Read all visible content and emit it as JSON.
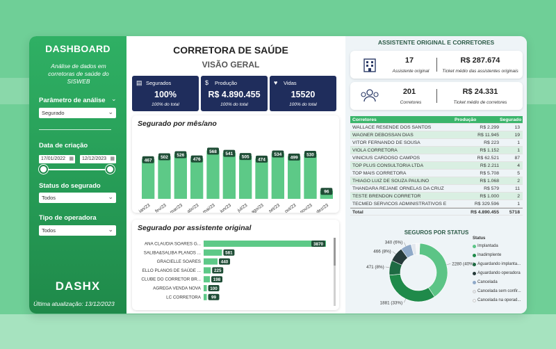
{
  "sidebar": {
    "title": "DASHBOARD",
    "subtitle": "Análise de dados em corretoras de saúde do SISWEB",
    "param_label": "Parâmetro de análise",
    "param_value": "Segurado",
    "date_label": "Data de criação",
    "date_start": "17/01/2022",
    "date_end": "12/12/2023",
    "status_label": "Status do segurado",
    "status_value": "Todos",
    "operator_label": "Tipo de operadora",
    "operator_value": "Todos",
    "logo": "DASHX",
    "updated": "Última atualização: 13/12/2023"
  },
  "header": {
    "title": "CORRETORA DE SAÚDE",
    "subtitle": "VISÃO GERAL"
  },
  "kpis": [
    {
      "label": "Segurados",
      "value": "100%",
      "total": "100% do total",
      "icon": "document-icon"
    },
    {
      "label": "Produção",
      "value": "R$ 4.890.455",
      "total": "100% do total",
      "icon": "money-icon"
    },
    {
      "label": "Vidas",
      "value": "15520",
      "total": "100% do total",
      "icon": "people-hands-icon"
    }
  ],
  "monthly": {
    "title": "Segurado por mês/ano",
    "categories": [
      "jan/23",
      "fev/23",
      "mar/23",
      "abr/23",
      "mai/23",
      "jun/23",
      "jul/23",
      "ago/23",
      "set/23",
      "out/23",
      "nov/23",
      "dez/23"
    ],
    "values": [
      467,
      502,
      526,
      476,
      568,
      541,
      505,
      474,
      534,
      499,
      530,
      96
    ],
    "colors": {
      "bar": "#5dc987",
      "label_bg": "#1f4d36"
    }
  },
  "assistants": {
    "title": "Segurado por assistente original",
    "rows": [
      {
        "name": "ANA CLAUDIA SOARES G...",
        "value": 3870
      },
      {
        "name": "SALIBA&SALIBA PLANOS ...",
        "value": 581
      },
      {
        "name": "GRACIELLE SOARES",
        "value": 440
      },
      {
        "name": "ELLO PLANOS DE SAÚDE ...",
        "value": 225
      },
      {
        "name": "CLUBE DO CORRETOR BR...",
        "value": 198
      },
      {
        "name": "AGREGA VENDA NOVA",
        "value": 100
      },
      {
        "name": "LC CORRETORA",
        "value": 99
      }
    ]
  },
  "right": {
    "heading": "ASSISTENTE ORIGINAL E CORRETORES",
    "card1": {
      "count": "17",
      "count_label": "Assistente original",
      "ticket": "R$ 287.674",
      "ticket_label": "Ticket médio das assistentes originais"
    },
    "card2": {
      "count": "201",
      "count_label": "Corretores",
      "ticket": "R$ 24.331",
      "ticket_label": "Ticket médio de corretores"
    }
  },
  "table": {
    "headers": [
      "Corretores",
      "Produção",
      "Segurado"
    ],
    "rows": [
      [
        "WALLACE RESENDE DOS SANTOS",
        "R$ 2.299",
        "13"
      ],
      [
        "WAGNER DEBOSSAN DIAS",
        "R$ 11.945",
        "19"
      ],
      [
        "VITOR FERNANDO DE SOUSA",
        "R$ 223",
        "1"
      ],
      [
        "VIOLA CORRETORA",
        "R$ 1.152",
        "1"
      ],
      [
        "VINICIUS CARDOSO CAMPOS",
        "R$ 62.521",
        "87"
      ],
      [
        "TOP PLUS CONSULTORIA LTDA",
        "R$ 2.211",
        "4"
      ],
      [
        "TOP MAIS CORRETORA",
        "R$ 5.708",
        "5"
      ],
      [
        "THIAGO LUIZ DE SOUZA PAULINO",
        "R$ 1.068",
        "2"
      ],
      [
        "THANDARA REJANE ORNELAS DA CRUZ",
        "R$ 579",
        "11"
      ],
      [
        "TESTE BRENDON CORRETOR",
        "R$ 1.000",
        "2"
      ],
      [
        "TECMED SERVICOS ADMINISTRATIVOS E",
        "R$ 329.596",
        "1"
      ]
    ],
    "total": [
      "Total",
      "R$ 4.890.455",
      "5718"
    ]
  },
  "status_chart": {
    "title": "SEGUROS POR STATUS",
    "legend_title": "Status",
    "slices": [
      {
        "label": "Implantada",
        "value": 2280,
        "display": "2280 (40%)",
        "color": "#5cc486"
      },
      {
        "label": "Inadimplente",
        "value": 1881,
        "display": "1881 (33%)",
        "color": "#1f8a4a"
      },
      {
        "label": "Aguardando implanta...",
        "value": 471,
        "display": "471 (8%)",
        "color": "#1e6b43"
      },
      {
        "label": "Aguardando operadora",
        "value": 466,
        "display": "466 (8%)",
        "color": "#263a3a"
      },
      {
        "label": "Cancelada",
        "value": 340,
        "display": "340 (6%)",
        "color": "#8fa9c8"
      },
      {
        "label": "Cancelada sem confir...",
        "value": 150,
        "display": "",
        "color": "#e3e8ee"
      },
      {
        "label": "Cancelada na operad...",
        "value": 130,
        "display": "",
        "color": "#f4f6f8"
      }
    ]
  }
}
